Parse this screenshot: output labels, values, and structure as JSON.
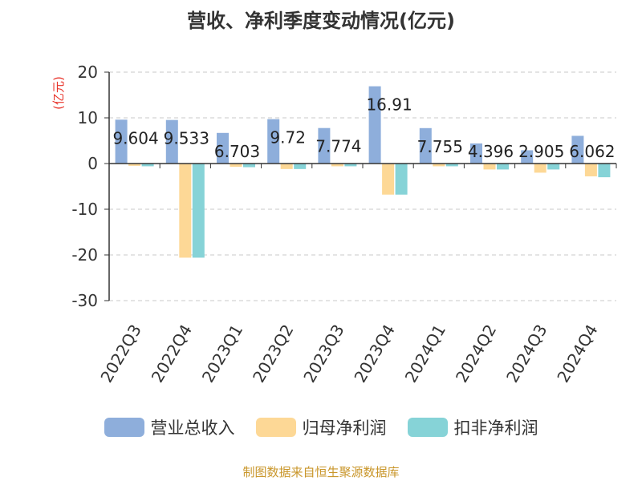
{
  "chart_data": {
    "type": "bar",
    "title": "营收、净利季度变动情况(亿元)",
    "ylabel": "(亿元)",
    "xlabel": "",
    "ylim": [
      -30,
      20
    ],
    "yticks": [
      20,
      10,
      0,
      -10,
      -20,
      -30
    ],
    "grid": true,
    "legend_placement": "bottom",
    "categories": [
      "2022Q3",
      "2022Q4",
      "2023Q1",
      "2023Q2",
      "2023Q3",
      "2023Q4",
      "2024Q1",
      "2024Q2",
      "2024Q3",
      "2024Q4"
    ],
    "series": [
      {
        "name": "营业总收入",
        "color": "#8eaedb",
        "values": [
          9.604,
          9.533,
          6.703,
          9.72,
          7.774,
          16.91,
          7.755,
          4.396,
          2.905,
          6.062
        ],
        "labels": [
          "9.604",
          "9.533",
          "6.703",
          "9.72",
          "7.774",
          "16.91",
          "7.755",
          "4.396",
          "2.905",
          "6.062"
        ]
      },
      {
        "name": "归母净利润",
        "color": "#fdd896",
        "values": [
          -0.5,
          -20.6,
          -0.7,
          -1.2,
          -0.6,
          -6.8,
          -0.6,
          -1.3,
          -2.0,
          -2.8
        ]
      },
      {
        "name": "扣非净利润",
        "color": "#86d3d7",
        "values": [
          -0.6,
          -20.6,
          -0.8,
          -1.2,
          -0.6,
          -6.8,
          -0.6,
          -1.3,
          -1.3,
          -3.0
        ]
      }
    ]
  },
  "footer": {
    "source": "制图数据来自恒生聚源数据库"
  }
}
